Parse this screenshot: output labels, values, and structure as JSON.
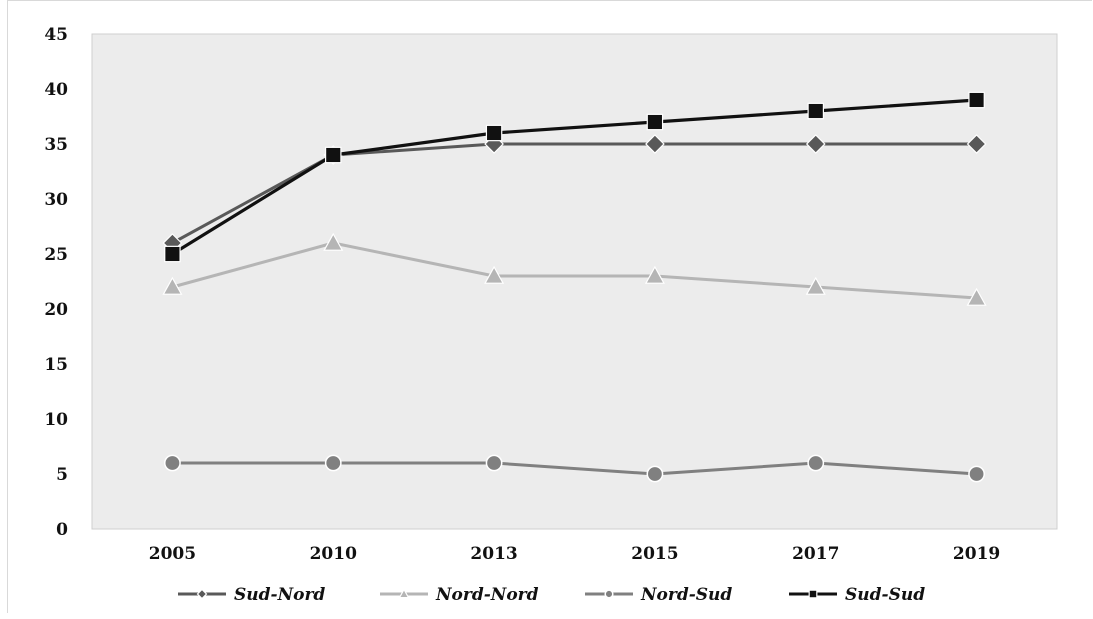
{
  "chart_data": {
    "type": "line",
    "categories": [
      "2005",
      "2010",
      "2013",
      "2015",
      "2017",
      "2019"
    ],
    "ylim": [
      0,
      45
    ],
    "yticks": [
      0,
      5,
      10,
      15,
      20,
      25,
      30,
      35,
      40,
      45
    ],
    "grid": false,
    "legend_position": "bottom",
    "plot_background": "#ececec",
    "series": [
      {
        "name": "Sud-Nord",
        "values": [
          26,
          34,
          35,
          35,
          35,
          35
        ],
        "color": "#595959",
        "marker": "diamond"
      },
      {
        "name": "Nord-Nord",
        "values": [
          22,
          26,
          23,
          23,
          22,
          21
        ],
        "color": "#b5b5b5",
        "marker": "triangle"
      },
      {
        "name": "Nord-Sud",
        "values": [
          6,
          6,
          6,
          5,
          6,
          5
        ],
        "color": "#808080",
        "marker": "circle"
      },
      {
        "name": "Sud-Sud",
        "values": [
          25,
          34,
          36,
          37,
          38,
          39
        ],
        "color": "#111111",
        "marker": "square"
      }
    ]
  }
}
